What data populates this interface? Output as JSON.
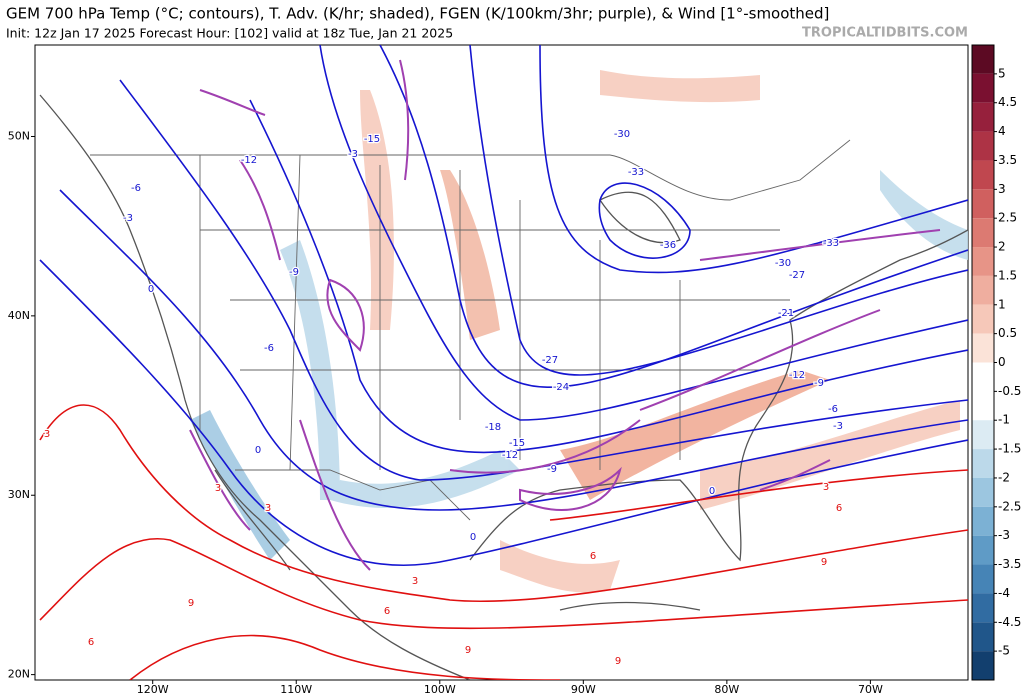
{
  "header": {
    "title": "GEM 700 hPa Temp (°C; contours), T. Adv. (K/hr; shaded), FGEN (K/100km/3hr; purple), & Wind [1°-smoothed]",
    "subtitle": "Init: 12z Jan 17 2025   Forecast Hour: [102]   valid at 18z Tue, Jan 21 2025",
    "watermark": "TROPICALTIDBITS.COM"
  },
  "map": {
    "xlim": [
      -128.2,
      -63.2
    ],
    "ylim": [
      19.7,
      55.1
    ],
    "xticks": [
      {
        "value": -120,
        "label": "120W"
      },
      {
        "value": -110,
        "label": "110W"
      },
      {
        "value": -100,
        "label": "100W"
      },
      {
        "value": -90,
        "label": "90W"
      },
      {
        "value": -80,
        "label": "80W"
      },
      {
        "value": -70,
        "label": "70W"
      }
    ],
    "yticks": [
      {
        "value": 50,
        "label": "50N"
      },
      {
        "value": 40,
        "label": "40N"
      },
      {
        "value": 30,
        "label": "30N"
      },
      {
        "value": 20,
        "label": "20N"
      }
    ],
    "contour_labels": [
      "-15",
      "-12",
      "-6",
      "-3",
      "0",
      "-9",
      "-6",
      "-30",
      "-33",
      "-36",
      "-30",
      "-27",
      "-33",
      "-21",
      "-27",
      "-24",
      "-18",
      "-15",
      "-12",
      "-12",
      "-9",
      "-6",
      "-3",
      "-9",
      "0",
      "0",
      "3",
      "3",
      "3",
      "6",
      "6",
      "9",
      "9",
      "6",
      "9",
      "3",
      "6",
      "3",
      "9",
      "-3",
      "0"
    ]
  },
  "colorbar": {
    "lim": [
      -5.5,
      5.5
    ],
    "ticks": [
      5,
      4.5,
      4,
      3.5,
      3,
      2.5,
      2,
      1.5,
      1,
      0.5,
      0,
      -0.5,
      -1,
      -1.5,
      -2,
      -2.5,
      -3,
      -3.5,
      -4,
      -4.5,
      -5
    ],
    "colors": [
      "#5c0a23",
      "#7a1030",
      "#96203c",
      "#ad3345",
      "#c0474f",
      "#d0605f",
      "#dc7a72",
      "#e79487",
      "#efae9f",
      "#f6c8b9",
      "#fbe3d8",
      "#ffffff",
      "#ffffff",
      "#dcebf3",
      "#bcd9ea",
      "#9cc6e0",
      "#7cb1d4",
      "#5f9bc6",
      "#4684b6",
      "#316ca2",
      "#20568a",
      "#123f6e"
    ]
  }
}
